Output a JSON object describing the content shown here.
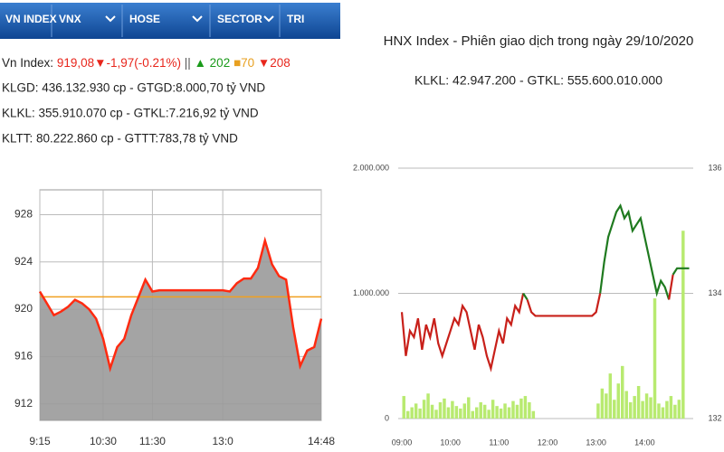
{
  "tabs": [
    "VN INDEX",
    "VNX",
    "HOSE",
    "SECTOR",
    "TRI"
  ],
  "info": {
    "line1": {
      "label": "Vn Index:",
      "value": "919,08▼-1,97(-0.21%)",
      "separator": "||",
      "up": "▲ 202",
      "flat": "■70",
      "down": "▼208"
    },
    "line2": "KLGD: 436.132.930 cp - GTGD:8.000,70 tỷ VND",
    "line3": "KLKL: 355.910.070 cp - GTKL:7.216,92 tỷ VND",
    "line4": "KLTT: 80.222.860 cp - GTTT:783,78 tỷ VND"
  },
  "chart_data": [
    {
      "type": "area",
      "categories": [
        "9:15",
        null,
        null,
        null,
        null,
        null,
        null,
        null,
        null,
        "10:30",
        null,
        null,
        null,
        null,
        null,
        null,
        "11:30",
        null,
        null,
        null,
        null,
        null,
        null,
        null,
        null,
        null,
        "13:0",
        null,
        null,
        null,
        null,
        null,
        null,
        null,
        null,
        null,
        null,
        null,
        null,
        null,
        "14:48"
      ],
      "values": [
        921.5,
        920.5,
        919.5,
        919.8,
        920.2,
        920.8,
        920.5,
        920.0,
        919.2,
        917.5,
        915.0,
        916.8,
        917.5,
        919.5,
        921.0,
        922.5,
        921.5,
        921.6,
        921.6,
        921.6,
        921.6,
        921.6,
        921.6,
        921.6,
        921.6,
        921.6,
        921.6,
        921.5,
        922.2,
        922.6,
        922.6,
        923.5,
        925.8,
        923.8,
        922.8,
        922.5,
        918.5,
        915.2,
        916.5,
        916.8,
        919.2
      ],
      "color": "#ff2a10",
      "fill_color": "#9a9a9a",
      "reference": 921.05,
      "reference_color": "#f0a020",
      "ylim": [
        910.6,
        930.1
      ],
      "yticks": [
        912,
        916,
        920,
        924,
        928
      ],
      "grid": true
    },
    {
      "type": "combo",
      "title": "HNX Index - Phiên giao dịch trong ngày 29/10/2020",
      "subtitle": "KLKL: 42.947.200 - GTKL: 555.600.010.000",
      "categories": [
        "09:00",
        null,
        null,
        null,
        null,
        null,
        null,
        null,
        null,
        null,
        null,
        null,
        "10:00",
        null,
        null,
        null,
        null,
        null,
        null,
        null,
        null,
        null,
        null,
        null,
        "11:00",
        null,
        null,
        null,
        null,
        null,
        null,
        null,
        null,
        null,
        null,
        null,
        "12:00",
        null,
        null,
        null,
        null,
        null,
        null,
        null,
        null,
        null,
        null,
        null,
        "13:00",
        null,
        null,
        null,
        null,
        null,
        null,
        null,
        null,
        null,
        null,
        null,
        "14:00",
        null,
        null,
        null,
        null,
        null,
        null,
        null,
        null,
        null,
        null,
        null
      ],
      "series": [
        {
          "type": "bar",
          "color": "#b8ea70",
          "values": [
            180000,
            60000,
            90000,
            120000,
            80000,
            150000,
            200000,
            110000,
            70000,
            130000,
            160000,
            90000,
            140000,
            100000,
            80000,
            120000,
            170000,
            60000,
            90000,
            130000,
            110000,
            70000,
            150000,
            100000,
            80000,
            120000,
            90000,
            140000,
            110000,
            160000,
            180000,
            130000,
            60000,
            0,
            0,
            0,
            0,
            0,
            0,
            0,
            0,
            0,
            0,
            0,
            0,
            0,
            0,
            0,
            120000,
            240000,
            200000,
            360000,
            150000,
            280000,
            420000,
            220000,
            130000,
            180000,
            260000,
            140000,
            200000,
            170000,
            960000,
            120000,
            90000,
            140000,
            180000,
            110000,
            150000,
            1500000,
            0,
            0
          ]
        },
        {
          "type": "line",
          "axis": "y2",
          "color": "#1f7a1f",
          "color_below": "#c8201a",
          "values": [
            133.7,
            133.0,
            133.4,
            133.3,
            133.6,
            133.1,
            133.5,
            133.3,
            133.6,
            133.2,
            133.0,
            133.2,
            133.4,
            133.6,
            133.5,
            133.8,
            133.7,
            133.4,
            133.1,
            133.5,
            133.3,
            133.0,
            132.8,
            133.1,
            133.4,
            133.2,
            133.6,
            133.5,
            133.8,
            133.7,
            134.0,
            133.9,
            133.7,
            133.64,
            133.64,
            133.64,
            133.64,
            133.64,
            133.64,
            133.64,
            133.64,
            133.64,
            133.64,
            133.64,
            133.64,
            133.64,
            133.64,
            133.64,
            133.7,
            134.0,
            134.5,
            134.9,
            135.1,
            135.3,
            135.4,
            135.2,
            135.3,
            135.0,
            135.1,
            135.2,
            134.9,
            134.6,
            134.3,
            134.0,
            134.2,
            134.1,
            133.9,
            134.3,
            134.4,
            134.4,
            134.4,
            134.4
          ]
        }
      ],
      "reference": 133.95,
      "ylim": [
        0,
        2000000
      ],
      "yticks": [
        {
          "value": 0,
          "label": "0"
        },
        {
          "value": 1000000,
          "label": "1.000.000"
        },
        {
          "value": 2000000,
          "label": "2.000.000"
        }
      ],
      "y2lim": [
        132,
        136
      ],
      "y2ticks": [
        132,
        134,
        136
      ],
      "grid": true
    }
  ]
}
